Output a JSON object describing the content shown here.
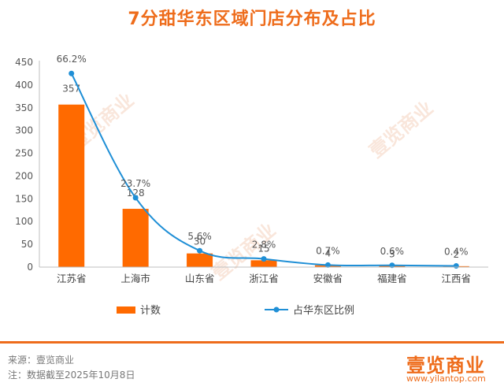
{
  "title": "7分甜华东区域门店分布及占比",
  "watermark": "壹览商业",
  "chart_data": {
    "type": "bar",
    "categories": [
      "江苏省",
      "上海市",
      "山东省",
      "浙江省",
      "安徽省",
      "福建省",
      "江西省"
    ],
    "series": [
      {
        "name": "计数",
        "type": "bar",
        "axis": "left",
        "color": "#ff6a00",
        "values": [
          357,
          128,
          30,
          15,
          4,
          3,
          2
        ],
        "labels": [
          "357",
          "128",
          "30",
          "15",
          "4",
          "3",
          "2"
        ]
      },
      {
        "name": "占华东区比例",
        "type": "line",
        "axis": "right",
        "color": "#1f8fd6",
        "values": [
          66.2,
          23.7,
          5.6,
          2.8,
          0.7,
          0.6,
          0.4
        ],
        "labels": [
          "66.2%",
          "23.7%",
          "5.6%",
          "2.8%",
          "0.7%",
          "0.6%",
          "0.4%"
        ]
      }
    ],
    "yticks": [
      "0",
      "50",
      "100",
      "150",
      "200",
      "250",
      "300",
      "350",
      "400",
      "450"
    ],
    "ylim": [
      0,
      450
    ],
    "grid": false,
    "legend": "bottom"
  },
  "footer": {
    "source": "来源：壹览商业",
    "note": "注：数据截至2025年10月8日",
    "brand": "壹览商业",
    "url": "www.yilantop.com"
  }
}
